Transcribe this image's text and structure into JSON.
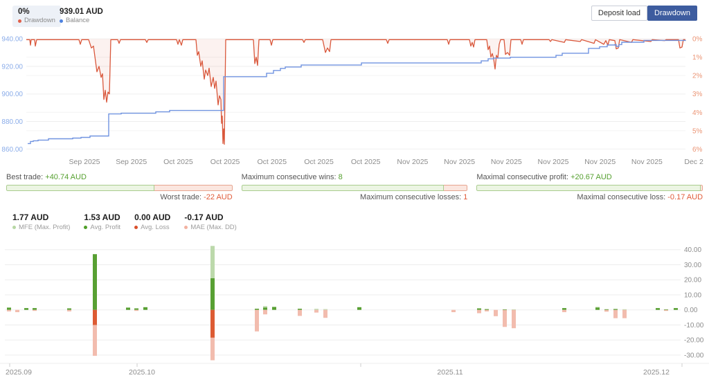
{
  "header": {
    "drawdown_chip": {
      "value": "0%",
      "label": "Drawdown",
      "dot_color": "#e0604a"
    },
    "balance_chip": {
      "value": "939.01 AUD",
      "label": "Balance",
      "dot_color": "#4d82e0"
    },
    "buttons": [
      {
        "label": "Deposit load",
        "active": false
      },
      {
        "label": "Drawdown",
        "active": true
      }
    ]
  },
  "stats": [
    {
      "top_label": "Best trade:",
      "top_value": "+40.74 AUD",
      "bottom_label": "Worst trade:",
      "bottom_value": "-22 AUD",
      "green_pct": 65
    },
    {
      "top_label": "Maximum consecutive wins:",
      "top_value": "8",
      "bottom_label": "Maximum consecutive losses:",
      "bottom_value": "1",
      "green_pct": 89
    },
    {
      "top_label": "Maximal consecutive profit:",
      "top_value": "+20.67 AUD",
      "bottom_label": "Maximal consecutive loss:",
      "bottom_value": "-0.17 AUD",
      "green_pct": 98.6
    }
  ],
  "metrics": [
    {
      "value": "1.77 AUD",
      "label": "MFE (Max. Profit)",
      "dot_color": "#b7d7a4"
    },
    {
      "value": "1.53 AUD",
      "label": "Avg. Profit",
      "dot_color": "#4e9e28"
    },
    {
      "value": "0.00 AUD",
      "label": "Avg. Loss",
      "dot_color": "#d94f2b"
    },
    {
      "value": "-0.17 AUD",
      "label": "MAE (Max. DD)",
      "dot_color": "#f2b1a0"
    }
  ],
  "chart_data": [
    {
      "type": "line",
      "name": "balance-and-drawdown",
      "left_axis": {
        "ticks": [
          "940.00",
          "920.00",
          "900.00",
          "880.00",
          "860.00"
        ],
        "max": 940,
        "min": 860
      },
      "right_axis": {
        "ticks": [
          "0%",
          "1%",
          "2%",
          "3%",
          "4%",
          "5%",
          "6%"
        ],
        "min": 0,
        "max": 6
      },
      "x_labels": [
        "Sep 2025",
        "Sep 2025",
        "Oct 2025",
        "Oct 2025",
        "Oct 2025",
        "Oct 2025",
        "Oct 2025",
        "Nov 2025",
        "Nov 2025",
        "Nov 2025",
        "Nov 2025",
        "Nov 2025",
        "Nov 2025",
        "Dec 2"
      ],
      "x_label_start": 122,
      "x_label_step": 67.7,
      "series": [
        {
          "name": "Balance",
          "axis": "left",
          "style": "step",
          "color": "#7093e0",
          "points": [
            [
              40,
              864
            ],
            [
              44,
              865.5
            ],
            [
              48,
              866
            ],
            [
              55,
              866.5
            ],
            [
              70,
              867.5
            ],
            [
              105,
              868
            ],
            [
              117,
              868.5
            ],
            [
              130,
              869.5
            ],
            [
              157,
              885.5
            ],
            [
              175,
              886
            ],
            [
              225,
              887
            ],
            [
              245,
              888
            ],
            [
              323,
              912.5
            ],
            [
              385,
              915
            ],
            [
              395,
              917
            ],
            [
              405,
              918.5
            ],
            [
              412,
              919.5
            ],
            [
              435,
              921
            ],
            [
              522,
              922.5
            ],
            [
              695,
              924
            ],
            [
              705,
              925.5
            ],
            [
              713,
              926
            ],
            [
              737,
              926.6
            ],
            [
              803,
              928
            ],
            [
              812,
              929.5
            ],
            [
              850,
              933
            ],
            [
              866,
              934.2
            ],
            [
              877,
              935.5
            ],
            [
              888,
              935.8
            ],
            [
              890,
              934.5
            ],
            [
              894,
              935.8
            ],
            [
              898,
              937.5
            ],
            [
              930,
              938.8
            ],
            [
              990,
              939
            ]
          ]
        },
        {
          "name": "Drawdown",
          "axis": "right",
          "style": "line",
          "color": "#d9573b",
          "fill": "rgba(217,87,59,0.08)",
          "points": [
            [
              38,
              0.05
            ],
            [
              43,
              0.05
            ],
            [
              44,
              0.35
            ],
            [
              45,
              0.05
            ],
            [
              50,
              0.05
            ],
            [
              51,
              0.4
            ],
            [
              53,
              0.05
            ],
            [
              114,
              0.05
            ],
            [
              116,
              0.3
            ],
            [
              118,
              0.05
            ],
            [
              128,
              0.05
            ],
            [
              132,
              0.5
            ],
            [
              135,
              0.4
            ],
            [
              140,
              1.8
            ],
            [
              143,
              1.5
            ],
            [
              146,
              2.1
            ],
            [
              148,
              1.9
            ],
            [
              150,
              3.3
            ],
            [
              152,
              2.8
            ],
            [
              154,
              3.45
            ],
            [
              156,
              2.9
            ],
            [
              158,
              3.0
            ],
            [
              160,
              0.05
            ],
            [
              170,
              0.05
            ],
            [
              172,
              0.25
            ],
            [
              174,
              0.05
            ],
            [
              210,
              0.05
            ],
            [
              212,
              0.2
            ],
            [
              214,
              0.05
            ],
            [
              255,
              0.05
            ],
            [
              257,
              0.3
            ],
            [
              259,
              0.05
            ],
            [
              262,
              0.35
            ],
            [
              264,
              0.05
            ],
            [
              283,
              0.05
            ],
            [
              285,
              0.9
            ],
            [
              287,
              0.7
            ],
            [
              290,
              1.5
            ],
            [
              292,
              1.2
            ],
            [
              295,
              2.2
            ],
            [
              297,
              1.7
            ],
            [
              300,
              2.0
            ],
            [
              302,
              1.6
            ],
            [
              305,
              2.6
            ],
            [
              308,
              2.1
            ],
            [
              310,
              2.7
            ],
            [
              312,
              2.3
            ],
            [
              315,
              3.6
            ],
            [
              317,
              3.1
            ],
            [
              319,
              3.3
            ],
            [
              320,
              4.6
            ],
            [
              321,
              4.2
            ],
            [
              322,
              5.7
            ],
            [
              323,
              4.9
            ],
            [
              324,
              5.74
            ],
            [
              326,
              0.05
            ],
            [
              366,
              0.05
            ],
            [
              368,
              1.35
            ],
            [
              370,
              1.0
            ],
            [
              372,
              1.45
            ],
            [
              374,
              0.05
            ],
            [
              390,
              0.05
            ],
            [
              392,
              0.35
            ],
            [
              394,
              0.05
            ],
            [
              437,
              0.05
            ],
            [
              439,
              0.2
            ],
            [
              441,
              0.05
            ],
            [
              466,
              0.05
            ],
            [
              470,
              0.75
            ],
            [
              473,
              0.5
            ],
            [
              476,
              0.7
            ],
            [
              478,
              0.05
            ],
            [
              558,
              0.05
            ],
            [
              560,
              0.25
            ],
            [
              562,
              0.05
            ],
            [
              646,
              0.05
            ],
            [
              648,
              0.3
            ],
            [
              650,
              0.05
            ],
            [
              678,
              0.05
            ],
            [
              680,
              0.4
            ],
            [
              682,
              0.2
            ],
            [
              684,
              0.45
            ],
            [
              686,
              0.05
            ],
            [
              703,
              0.05
            ],
            [
              705,
              0.6
            ],
            [
              707,
              0.4
            ],
            [
              709,
              1.0
            ],
            [
              711,
              0.8
            ],
            [
              713,
              1.1
            ],
            [
              715,
              1.65
            ],
            [
              717,
              0.9
            ],
            [
              719,
              1.05
            ],
            [
              721,
              0.3
            ],
            [
              723,
              0.05
            ],
            [
              728,
              0.05
            ],
            [
              730,
              0.85
            ],
            [
              733,
              0.75
            ],
            [
              736,
              0.9
            ],
            [
              738,
              0.05
            ],
            [
              752,
              0.05
            ],
            [
              754,
              0.3
            ],
            [
              756,
              0.05
            ],
            [
              793,
              0.05
            ],
            [
              795,
              0.15
            ],
            [
              797,
              0.05
            ],
            [
              815,
              0.2
            ],
            [
              817,
              0.05
            ],
            [
              838,
              0.15
            ],
            [
              840,
              0.05
            ],
            [
              858,
              0.25
            ],
            [
              860,
              0.05
            ],
            [
              872,
              0.3
            ],
            [
              875,
              0.1
            ],
            [
              878,
              0.35
            ],
            [
              880,
              0.05
            ],
            [
              888,
              0.1
            ],
            [
              890,
              0.55
            ],
            [
              893,
              0.5
            ],
            [
              895,
              0.05
            ],
            [
              912,
              0.2
            ],
            [
              914,
              0.05
            ],
            [
              940,
              0.15
            ],
            [
              942,
              0.05
            ],
            [
              960,
              0.1
            ],
            [
              962,
              0.05
            ],
            [
              980,
              0.05
            ],
            [
              982,
              0.5
            ],
            [
              985,
              0.45
            ],
            [
              987,
              0.05
            ],
            [
              990,
              0.05
            ]
          ]
        }
      ]
    },
    {
      "type": "bar",
      "name": "trade-results-by-time",
      "y_ticks": [
        "40.00",
        "30.00",
        "20.00",
        "10.00",
        "0.00",
        "-10.00",
        "-20.00",
        "-30.00"
      ],
      "ylim": [
        -33,
        43
      ],
      "colors": {
        "profit": "#58a033",
        "mfe": "#bcd9ab",
        "loss": "#dd5b33",
        "mae": "#f2bcae"
      },
      "x_ticks": [
        14,
        198,
        521,
        985
      ],
      "x_labels": [
        {
          "label": "2025.09",
          "x": 27
        },
        {
          "label": "2025.10",
          "x": 205
        },
        {
          "label": "2025.11",
          "x": 650
        },
        {
          "label": "2025.12",
          "x": 948
        }
      ],
      "bars": [
        [
          13,
          1.5,
          0,
          0,
          1
        ],
        [
          25,
          0,
          0,
          0,
          1.5
        ],
        [
          38,
          1.2,
          0,
          0,
          0
        ],
        [
          50,
          1.2,
          0,
          0,
          0.5
        ],
        [
          100,
          1,
          0,
          0,
          1
        ],
        [
          137,
          37,
          0,
          10,
          20.5
        ],
        [
          185,
          1.5,
          0,
          0,
          0
        ],
        [
          197,
          1,
          0,
          0,
          0.5
        ],
        [
          210,
          1.8,
          0,
          0,
          0
        ],
        [
          307,
          21,
          21.5,
          18.5,
          15
        ],
        [
          371,
          0.8,
          0,
          0,
          14.3
        ],
        [
          383,
          1.5,
          1,
          0,
          3
        ],
        [
          396,
          2,
          0,
          0,
          0
        ],
        [
          433,
          0.8,
          0,
          0,
          4
        ],
        [
          457,
          0,
          0.7,
          0,
          1.8
        ],
        [
          470,
          0,
          0.5,
          0,
          5.3
        ],
        [
          519,
          1.8,
          0,
          0,
          0
        ],
        [
          655,
          0,
          0,
          0,
          1.5
        ],
        [
          692,
          1,
          0,
          0,
          2.2
        ],
        [
          703,
          0.5,
          0,
          0,
          1
        ],
        [
          716,
          0,
          0,
          0,
          4.2
        ],
        [
          729,
          0.3,
          0,
          0,
          11.3
        ],
        [
          742,
          0,
          0.3,
          0,
          12.2
        ],
        [
          815,
          1.2,
          0,
          0,
          1.5
        ],
        [
          863,
          1.5,
          0.5,
          0,
          0
        ],
        [
          876,
          0.4,
          0,
          0,
          1.2
        ],
        [
          889,
          0.6,
          0,
          0,
          5.5
        ],
        [
          902,
          0,
          0.4,
          0,
          5.5
        ],
        [
          950,
          1.2,
          0,
          0,
          0
        ],
        [
          962,
          0.3,
          0,
          0,
          0.7
        ],
        [
          976,
          1.2,
          0,
          0,
          0
        ]
      ]
    }
  ]
}
